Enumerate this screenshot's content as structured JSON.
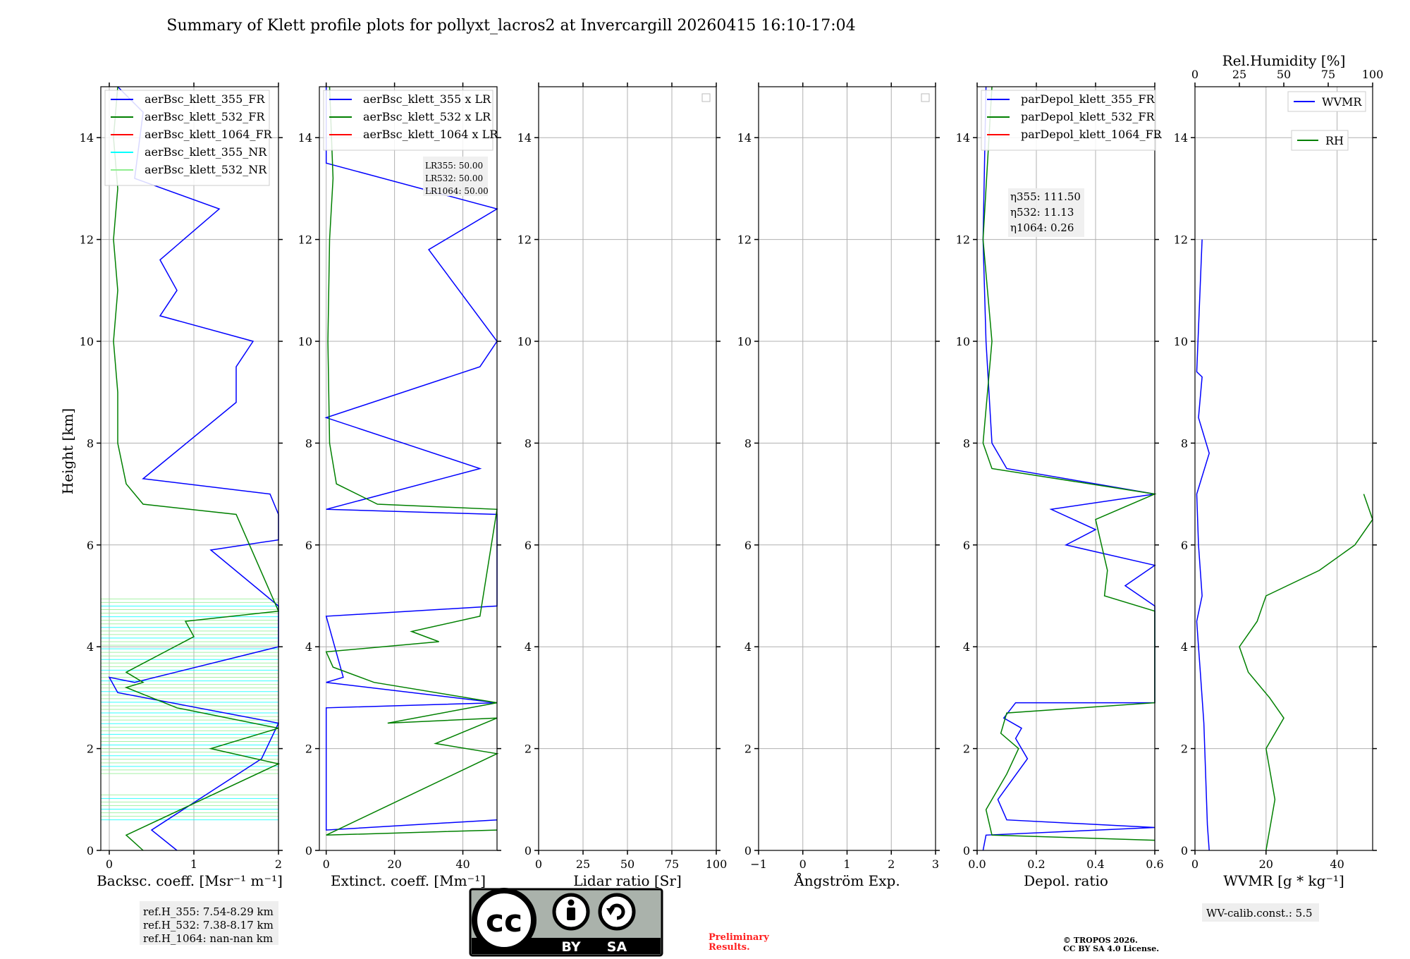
{
  "title": "Summary of Klett profile plots for pollyxt_lacros2 at Invercargill 20260415 16:10-17:04",
  "ylabel": "Height [km]",
  "colors": {
    "blue": "#0000ff",
    "green": "#008000",
    "red": "#ff0000",
    "cyan": "#00ffff",
    "lightgreen": "#90ee90",
    "grid": "#b0b0b0",
    "infobox": "#eeeeee"
  },
  "chart_data": [
    {
      "type": "line",
      "id": "bsc",
      "xlabel": "Backsc. coeff. [Msr⁻¹ m⁻¹]",
      "xlim": [
        -0.1,
        2
      ],
      "ylim": [
        0,
        15
      ],
      "xticks": [
        0,
        1,
        2
      ],
      "xtick_labels": [
        "0",
        "1",
        "2"
      ],
      "yticks": [
        0,
        2,
        4,
        6,
        8,
        10,
        12,
        14
      ],
      "legend": [
        "aerBsc_klett_355_FR",
        "aerBsc_klett_532_FR",
        "aerBsc_klett_1064_FR",
        "aerBsc_klett_355_NR",
        "aerBsc_klett_532_NR"
      ],
      "series": [
        {
          "name": "aerBsc_klett_355_FR",
          "color": "blue",
          "points": [
            [
              0.8,
              0
            ],
            [
              0.5,
              0.4
            ],
            [
              1.8,
              1.8
            ],
            [
              2,
              2.5
            ],
            [
              0.1,
              3.1
            ],
            [
              0,
              3.4
            ],
            [
              0.3,
              3.3
            ],
            [
              2,
              4.0
            ],
            [
              2,
              4.6
            ],
            [
              2,
              4.8
            ],
            [
              1.2,
              5.9
            ],
            [
              2,
              6.1
            ],
            [
              2,
              6.6
            ],
            [
              1.9,
              7.0
            ],
            [
              0.4,
              7.3
            ],
            [
              1.5,
              8.8
            ],
            [
              1.5,
              9.5
            ],
            [
              1.7,
              10.0
            ],
            [
              0.6,
              10.5
            ],
            [
              0.8,
              11.0
            ],
            [
              0.6,
              11.6
            ],
            [
              1.3,
              12.6
            ],
            [
              0.3,
              13.2
            ],
            [
              0.4,
              14.5
            ],
            [
              0.1,
              15
            ]
          ]
        },
        {
          "name": "aerBsc_klett_532_FR",
          "color": "green",
          "points": [
            [
              0.4,
              0
            ],
            [
              0.2,
              0.3
            ],
            [
              2,
              1.7
            ],
            [
              1.2,
              2.0
            ],
            [
              2,
              2.4
            ],
            [
              0.8,
              2.8
            ],
            [
              0.2,
              3.2
            ],
            [
              0.4,
              3.3
            ],
            [
              0.2,
              3.5
            ],
            [
              1.0,
              4.2
            ],
            [
              0.9,
              4.5
            ],
            [
              2,
              4.7
            ],
            [
              1.5,
              6.6
            ],
            [
              0.4,
              6.8
            ],
            [
              0.2,
              7.2
            ],
            [
              0.1,
              8.0
            ],
            [
              0.1,
              9.0
            ],
            [
              0.05,
              10.0
            ],
            [
              0.1,
              11.0
            ],
            [
              0.05,
              12.0
            ],
            [
              0.1,
              13.0
            ],
            [
              0.05,
              14.0
            ],
            [
              0.1,
              15
            ]
          ]
        }
      ]
    },
    {
      "type": "line",
      "id": "ext",
      "xlabel": "Extinct. coeff. [Mm⁻¹]",
      "xlim": [
        -2,
        50
      ],
      "ylim": [
        0,
        15
      ],
      "xticks": [
        0,
        20,
        40
      ],
      "xtick_labels": [
        "0",
        "20",
        "40"
      ],
      "yticks": [
        0,
        2,
        4,
        6,
        8,
        10,
        12,
        14
      ],
      "legend": [
        "aerBsc_klett_355 x LR",
        "aerBsc_klett_532 x LR",
        "aerBsc_klett_1064 x LR"
      ],
      "series": [
        {
          "name": "aerBsc_klett_355 x LR",
          "color": "blue",
          "points": [
            [
              50,
              0.6
            ],
            [
              0,
              0.4
            ],
            [
              0,
              2.8
            ],
            [
              50,
              2.9
            ],
            [
              0,
              3.3
            ],
            [
              5,
              3.4
            ],
            [
              0,
              4.6
            ],
            [
              50,
              4.8
            ],
            [
              50,
              6.6
            ],
            [
              0,
              6.7
            ],
            [
              45,
              7.5
            ],
            [
              0,
              8.5
            ],
            [
              45,
              9.5
            ],
            [
              50,
              10
            ],
            [
              30,
              11.8
            ],
            [
              50,
              12.6
            ],
            [
              0,
              13.5
            ],
            [
              0,
              15
            ]
          ]
        },
        {
          "name": "aerBsc_klett_532 x LR",
          "color": "green",
          "points": [
            [
              50,
              0.4
            ],
            [
              0,
              0.3
            ],
            [
              50,
              1.9
            ],
            [
              32,
              2.1
            ],
            [
              50,
              2.6
            ],
            [
              18,
              2.5
            ],
            [
              50,
              2.9
            ],
            [
              14,
              3.3
            ],
            [
              2,
              3.6
            ],
            [
              0,
              3.9
            ],
            [
              33,
              4.1
            ],
            [
              25,
              4.3
            ],
            [
              45,
              4.6
            ],
            [
              50,
              6.7
            ],
            [
              15,
              6.8
            ],
            [
              3,
              7.2
            ],
            [
              1,
              8.0
            ],
            [
              0.5,
              10
            ],
            [
              1,
              12
            ],
            [
              2,
              13.2
            ],
            [
              1,
              15
            ]
          ]
        }
      ],
      "annotation": [
        "LR355: 50.00",
        "LR532: 50.00",
        "LR1064: 50.00"
      ]
    },
    {
      "type": "line",
      "id": "lr",
      "xlabel": "Lidar ratio [Sr]",
      "xlim": [
        0,
        100
      ],
      "ylim": [
        0,
        15
      ],
      "xticks": [
        0,
        25,
        50,
        75,
        100
      ],
      "xtick_labels": [
        "0",
        "25",
        "50",
        "75",
        "100"
      ],
      "yticks": [
        0,
        2,
        4,
        6,
        8,
        10,
        12,
        14
      ],
      "series": []
    },
    {
      "type": "line",
      "id": "ae",
      "xlabel": "Ångström Exp.",
      "xlim": [
        -1,
        3
      ],
      "ylim": [
        0,
        15
      ],
      "xticks": [
        -1,
        0,
        1,
        2,
        3
      ],
      "xtick_labels": [
        "−1",
        "0",
        "1",
        "2",
        "3"
      ],
      "yticks": [
        0,
        2,
        4,
        6,
        8,
        10,
        12,
        14
      ],
      "series": []
    },
    {
      "type": "line",
      "id": "depol",
      "xlabel": "Depol. ratio",
      "xlim": [
        0,
        0.6
      ],
      "ylim": [
        0,
        15
      ],
      "xticks": [
        0,
        0.2,
        0.4,
        0.6
      ],
      "xtick_labels": [
        "0.0",
        "0.2",
        "0.4",
        "0.6"
      ],
      "yticks": [
        0,
        2,
        4,
        6,
        8,
        10,
        12,
        14
      ],
      "legend": [
        "parDepol_klett_355_FR",
        "parDepol_klett_532_FR",
        "parDepol_klett_1064_FR"
      ],
      "series": [
        {
          "name": "parDepol_klett_355_FR",
          "color": "blue",
          "points": [
            [
              0.02,
              0
            ],
            [
              0.03,
              0.3
            ],
            [
              0.6,
              0.45
            ],
            [
              0.1,
              0.6
            ],
            [
              0.07,
              1.0
            ],
            [
              0.17,
              1.8
            ],
            [
              0.13,
              2.2
            ],
            [
              0.15,
              2.4
            ],
            [
              0.09,
              2.6
            ],
            [
              0.13,
              2.9
            ],
            [
              0.6,
              2.9
            ],
            [
              0.6,
              3.3
            ],
            [
              0.6,
              4.8
            ],
            [
              0.5,
              5.2
            ],
            [
              0.6,
              5.6
            ],
            [
              0.3,
              6.0
            ],
            [
              0.4,
              6.3
            ],
            [
              0.25,
              6.7
            ],
            [
              0.6,
              7.0
            ],
            [
              0.1,
              7.5
            ],
            [
              0.05,
              8.0
            ],
            [
              0.03,
              10
            ],
            [
              0.02,
              12
            ],
            [
              0.03,
              15
            ]
          ]
        },
        {
          "name": "parDepol_klett_532_FR",
          "color": "green",
          "points": [
            [
              0.6,
              0.2
            ],
            [
              0.05,
              0.3
            ],
            [
              0.03,
              0.8
            ],
            [
              0.1,
              1.5
            ],
            [
              0.14,
              2.0
            ],
            [
              0.08,
              2.3
            ],
            [
              0.1,
              2.7
            ],
            [
              0.6,
              2.9
            ],
            [
              0.6,
              3.4
            ],
            [
              0.6,
              4.0
            ],
            [
              0.6,
              4.7
            ],
            [
              0.43,
              5.0
            ],
            [
              0.44,
              5.5
            ],
            [
              0.42,
              6.0
            ],
            [
              0.4,
              6.5
            ],
            [
              0.6,
              7.0
            ],
            [
              0.05,
              7.5
            ],
            [
              0.02,
              8.0
            ],
            [
              0.05,
              10
            ],
            [
              0.02,
              12
            ],
            [
              0.05,
              15
            ]
          ]
        }
      ],
      "annotation": [
        "η355: 111.50",
        "η532: 11.13",
        "η1064: 0.26"
      ]
    },
    {
      "type": "line",
      "id": "wv",
      "xlabel": "WVMR [g * kg⁻¹]",
      "x2label": "Rel.Humidity [%]",
      "xlim": [
        0,
        50
      ],
      "x2lim": [
        0,
        100
      ],
      "ylim": [
        0,
        15
      ],
      "xticks": [
        0,
        20,
        40
      ],
      "xtick_labels": [
        "0",
        "20",
        "40"
      ],
      "x2ticks": [
        0,
        25,
        50,
        75,
        100
      ],
      "x2tick_labels": [
        "0",
        "25",
        "50",
        "75",
        "100"
      ],
      "yticks": [
        0,
        2,
        4,
        6,
        8,
        10,
        12,
        14
      ],
      "legend": [
        "WVMR",
        "RH"
      ],
      "series": [
        {
          "name": "WVMR",
          "color": "blue",
          "points": [
            [
              4,
              0
            ],
            [
              3.5,
              0.5
            ],
            [
              3,
              1.5
            ],
            [
              2.5,
              2.5
            ],
            [
              1.5,
              3.5
            ],
            [
              1,
              4.0
            ],
            [
              0.5,
              4.5
            ],
            [
              2,
              5.0
            ],
            [
              1,
              6.0
            ],
            [
              0.5,
              7.0
            ],
            [
              4,
              7.8
            ],
            [
              1,
              8.5
            ],
            [
              2,
              9.3
            ],
            [
              0.5,
              9.4
            ],
            [
              2,
              12.0
            ]
          ]
        },
        {
          "name": "RH",
          "color": "green",
          "points": [
            [
              40,
              0
            ],
            [
              45,
              1.0
            ],
            [
              40,
              2.0
            ],
            [
              50,
              2.6
            ],
            [
              42,
              3.0
            ],
            [
              30,
              3.5
            ],
            [
              25,
              4.0
            ],
            [
              35,
              4.5
            ],
            [
              40,
              5.0
            ],
            [
              70,
              5.5
            ],
            [
              90,
              6.0
            ],
            [
              100,
              6.5
            ],
            [
              95,
              7.0
            ]
          ]
        }
      ]
    }
  ],
  "ref_box": [
    "ref.H_355: 7.54-8.29 km",
    "ref.H_532: 7.38-8.17 km",
    "ref.H_1064: nan-nan km"
  ],
  "wv_calib": "WV-calib.const.: 5.5",
  "license": {
    "cc": "cc",
    "by": "BY",
    "sa": "SA"
  },
  "preliminary": [
    "Preliminary",
    "Results."
  ],
  "copyright": [
    "© TROPOS 2026.",
    "CC BY SA 4.0 License."
  ]
}
